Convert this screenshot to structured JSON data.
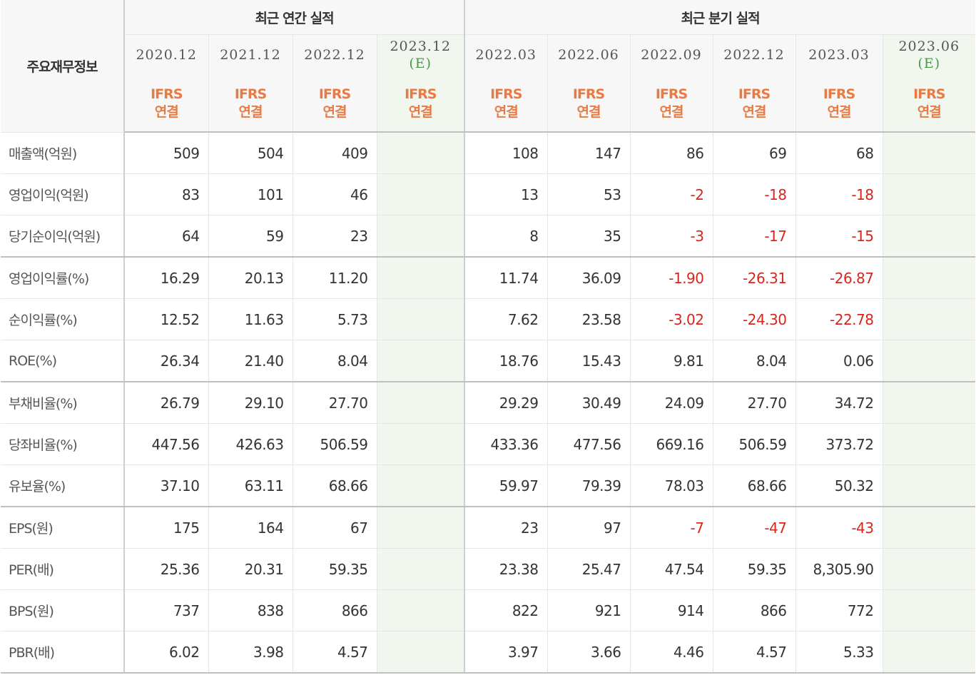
{
  "header": {
    "row_label": "주요재무정보",
    "annual_group": "최근 연간 실적",
    "quarter_group": "최근 분기 실적",
    "annual_periods": [
      {
        "date": "2020.12",
        "est": ""
      },
      {
        "date": "2021.12",
        "est": ""
      },
      {
        "date": "2022.12",
        "est": ""
      },
      {
        "date": "2023.12",
        "est": "(E)"
      }
    ],
    "quarter_periods": [
      {
        "date": "2022.03",
        "est": ""
      },
      {
        "date": "2022.06",
        "est": ""
      },
      {
        "date": "2022.09",
        "est": ""
      },
      {
        "date": "2022.12",
        "est": ""
      },
      {
        "date": "2023.03",
        "est": ""
      },
      {
        "date": "2023.06",
        "est": "(E)"
      }
    ],
    "basis_line1": "IFRS",
    "basis_line2": "연결"
  },
  "colors": {
    "ifrs": "#e87a43",
    "estimate": "#4a9a4a",
    "negative": "#d6261d",
    "estimate_bg": "#f1f6ef"
  },
  "rows": [
    {
      "label": "매출액(억원)",
      "annual": [
        "509",
        "504",
        "409",
        ""
      ],
      "quarter": [
        "108",
        "147",
        "86",
        "69",
        "68",
        ""
      ]
    },
    {
      "label": "영업이익(억원)",
      "annual": [
        "83",
        "101",
        "46",
        ""
      ],
      "quarter": [
        "13",
        "53",
        "-2",
        "-18",
        "-18",
        ""
      ]
    },
    {
      "label": "당기순이익(억원)",
      "annual": [
        "64",
        "59",
        "23",
        ""
      ],
      "quarter": [
        "8",
        "35",
        "-3",
        "-17",
        "-15",
        ""
      ]
    },
    {
      "label": "영업이익률(%)",
      "annual": [
        "16.29",
        "20.13",
        "11.20",
        ""
      ],
      "quarter": [
        "11.74",
        "36.09",
        "-1.90",
        "-26.31",
        "-26.87",
        ""
      ]
    },
    {
      "label": "순이익률(%)",
      "annual": [
        "12.52",
        "11.63",
        "5.73",
        ""
      ],
      "quarter": [
        "7.62",
        "23.58",
        "-3.02",
        "-24.30",
        "-22.78",
        ""
      ]
    },
    {
      "label": "ROE(%)",
      "annual": [
        "26.34",
        "21.40",
        "8.04",
        ""
      ],
      "quarter": [
        "18.76",
        "15.43",
        "9.81",
        "8.04",
        "0.06",
        ""
      ]
    },
    {
      "label": "부채비율(%)",
      "annual": [
        "26.79",
        "29.10",
        "27.70",
        ""
      ],
      "quarter": [
        "29.29",
        "30.49",
        "24.09",
        "27.70",
        "34.72",
        ""
      ]
    },
    {
      "label": "당좌비율(%)",
      "annual": [
        "447.56",
        "426.63",
        "506.59",
        ""
      ],
      "quarter": [
        "433.36",
        "477.56",
        "669.16",
        "506.59",
        "373.72",
        ""
      ]
    },
    {
      "label": "유보율(%)",
      "annual": [
        "37.10",
        "63.11",
        "68.66",
        ""
      ],
      "quarter": [
        "59.97",
        "79.39",
        "78.03",
        "68.66",
        "50.32",
        ""
      ]
    },
    {
      "label": "EPS(원)",
      "annual": [
        "175",
        "164",
        "67",
        ""
      ],
      "quarter": [
        "23",
        "97",
        "-7",
        "-47",
        "-43",
        ""
      ]
    },
    {
      "label": "PER(배)",
      "annual": [
        "25.36",
        "20.31",
        "59.35",
        ""
      ],
      "quarter": [
        "23.38",
        "25.47",
        "47.54",
        "59.35",
        "8,305.90",
        ""
      ]
    },
    {
      "label": "BPS(원)",
      "annual": [
        "737",
        "838",
        "866",
        ""
      ],
      "quarter": [
        "822",
        "921",
        "914",
        "866",
        "772",
        ""
      ]
    },
    {
      "label": "PBR(배)",
      "annual": [
        "6.02",
        "3.98",
        "4.57",
        ""
      ],
      "quarter": [
        "3.97",
        "3.66",
        "4.46",
        "4.57",
        "5.33",
        ""
      ]
    }
  ]
}
